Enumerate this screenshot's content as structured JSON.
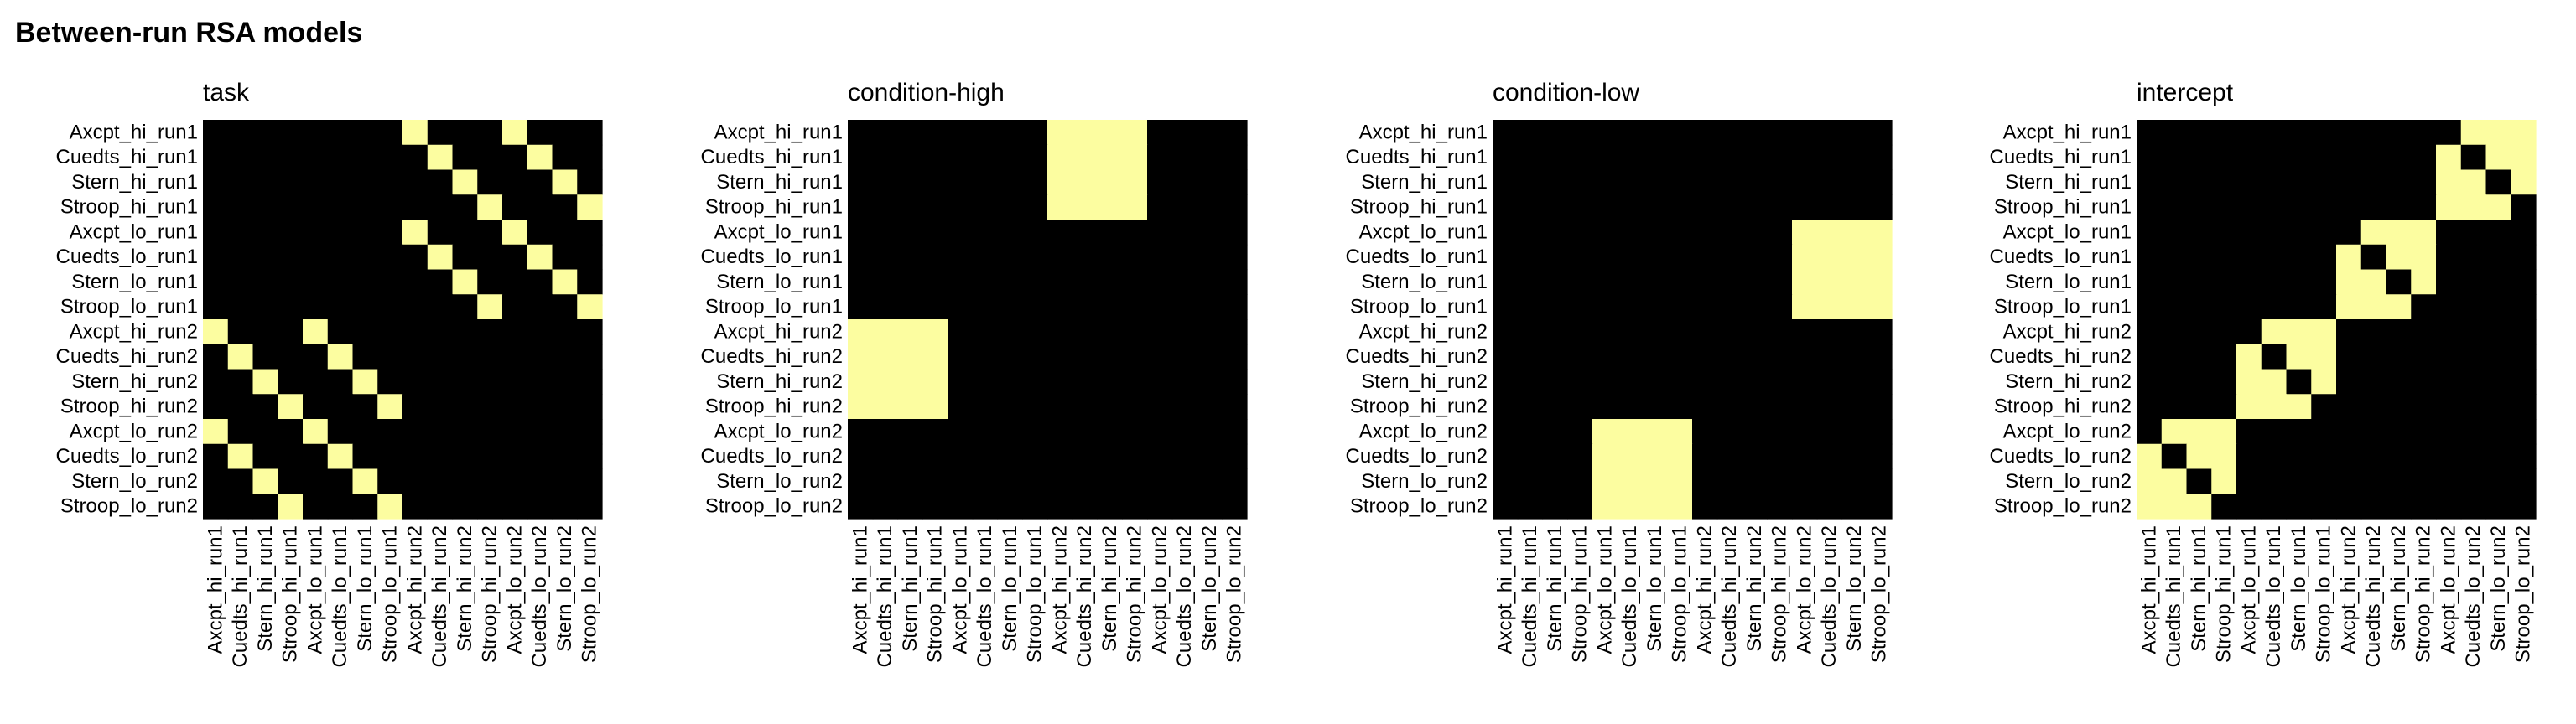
{
  "figure": {
    "title": "Between-run RSA models"
  },
  "chart_data": [
    {
      "type": "heatmap",
      "title": "task",
      "labels": [
        "Axcpt_hi_run1",
        "Cuedts_hi_run1",
        "Stern_hi_run1",
        "Stroop_hi_run1",
        "Axcpt_lo_run1",
        "Cuedts_lo_run1",
        "Stern_lo_run1",
        "Stroop_lo_run1",
        "Axcpt_hi_run2",
        "Cuedts_hi_run2",
        "Stern_hi_run2",
        "Stroop_hi_run2",
        "Axcpt_lo_run2",
        "Cuedts_lo_run2",
        "Stern_lo_run2",
        "Stroop_lo_run2"
      ],
      "matrix": [
        [
          0,
          0,
          0,
          0,
          0,
          0,
          0,
          0,
          1,
          0,
          0,
          0,
          1,
          0,
          0,
          0
        ],
        [
          0,
          0,
          0,
          0,
          0,
          0,
          0,
          0,
          0,
          1,
          0,
          0,
          0,
          1,
          0,
          0
        ],
        [
          0,
          0,
          0,
          0,
          0,
          0,
          0,
          0,
          0,
          0,
          1,
          0,
          0,
          0,
          1,
          0
        ],
        [
          0,
          0,
          0,
          0,
          0,
          0,
          0,
          0,
          0,
          0,
          0,
          1,
          0,
          0,
          0,
          1
        ],
        [
          0,
          0,
          0,
          0,
          0,
          0,
          0,
          0,
          1,
          0,
          0,
          0,
          1,
          0,
          0,
          0
        ],
        [
          0,
          0,
          0,
          0,
          0,
          0,
          0,
          0,
          0,
          1,
          0,
          0,
          0,
          1,
          0,
          0
        ],
        [
          0,
          0,
          0,
          0,
          0,
          0,
          0,
          0,
          0,
          0,
          1,
          0,
          0,
          0,
          1,
          0
        ],
        [
          0,
          0,
          0,
          0,
          0,
          0,
          0,
          0,
          0,
          0,
          0,
          1,
          0,
          0,
          0,
          1
        ],
        [
          1,
          0,
          0,
          0,
          1,
          0,
          0,
          0,
          0,
          0,
          0,
          0,
          0,
          0,
          0,
          0
        ],
        [
          0,
          1,
          0,
          0,
          0,
          1,
          0,
          0,
          0,
          0,
          0,
          0,
          0,
          0,
          0,
          0
        ],
        [
          0,
          0,
          1,
          0,
          0,
          0,
          1,
          0,
          0,
          0,
          0,
          0,
          0,
          0,
          0,
          0
        ],
        [
          0,
          0,
          0,
          1,
          0,
          0,
          0,
          1,
          0,
          0,
          0,
          0,
          0,
          0,
          0,
          0
        ],
        [
          1,
          0,
          0,
          0,
          1,
          0,
          0,
          0,
          0,
          0,
          0,
          0,
          0,
          0,
          0,
          0
        ],
        [
          0,
          1,
          0,
          0,
          0,
          1,
          0,
          0,
          0,
          0,
          0,
          0,
          0,
          0,
          0,
          0
        ],
        [
          0,
          0,
          1,
          0,
          0,
          0,
          1,
          0,
          0,
          0,
          0,
          0,
          0,
          0,
          0,
          0
        ],
        [
          0,
          0,
          0,
          1,
          0,
          0,
          0,
          1,
          0,
          0,
          0,
          0,
          0,
          0,
          0,
          0
        ]
      ],
      "colors": {
        "0": "#000000",
        "1": "#FCFDA0"
      },
      "legend": "none",
      "grid": false
    },
    {
      "type": "heatmap",
      "title": "condition-high",
      "labels": [
        "Axcpt_hi_run1",
        "Cuedts_hi_run1",
        "Stern_hi_run1",
        "Stroop_hi_run1",
        "Axcpt_lo_run1",
        "Cuedts_lo_run1",
        "Stern_lo_run1",
        "Stroop_lo_run1",
        "Axcpt_hi_run2",
        "Cuedts_hi_run2",
        "Stern_hi_run2",
        "Stroop_hi_run2",
        "Axcpt_lo_run2",
        "Cuedts_lo_run2",
        "Stern_lo_run2",
        "Stroop_lo_run2"
      ],
      "matrix": [
        [
          0,
          0,
          0,
          0,
          0,
          0,
          0,
          0,
          1,
          1,
          1,
          1,
          0,
          0,
          0,
          0
        ],
        [
          0,
          0,
          0,
          0,
          0,
          0,
          0,
          0,
          1,
          1,
          1,
          1,
          0,
          0,
          0,
          0
        ],
        [
          0,
          0,
          0,
          0,
          0,
          0,
          0,
          0,
          1,
          1,
          1,
          1,
          0,
          0,
          0,
          0
        ],
        [
          0,
          0,
          0,
          0,
          0,
          0,
          0,
          0,
          1,
          1,
          1,
          1,
          0,
          0,
          0,
          0
        ],
        [
          0,
          0,
          0,
          0,
          0,
          0,
          0,
          0,
          0,
          0,
          0,
          0,
          0,
          0,
          0,
          0
        ],
        [
          0,
          0,
          0,
          0,
          0,
          0,
          0,
          0,
          0,
          0,
          0,
          0,
          0,
          0,
          0,
          0
        ],
        [
          0,
          0,
          0,
          0,
          0,
          0,
          0,
          0,
          0,
          0,
          0,
          0,
          0,
          0,
          0,
          0
        ],
        [
          0,
          0,
          0,
          0,
          0,
          0,
          0,
          0,
          0,
          0,
          0,
          0,
          0,
          0,
          0,
          0
        ],
        [
          1,
          1,
          1,
          1,
          0,
          0,
          0,
          0,
          0,
          0,
          0,
          0,
          0,
          0,
          0,
          0
        ],
        [
          1,
          1,
          1,
          1,
          0,
          0,
          0,
          0,
          0,
          0,
          0,
          0,
          0,
          0,
          0,
          0
        ],
        [
          1,
          1,
          1,
          1,
          0,
          0,
          0,
          0,
          0,
          0,
          0,
          0,
          0,
          0,
          0,
          0
        ],
        [
          1,
          1,
          1,
          1,
          0,
          0,
          0,
          0,
          0,
          0,
          0,
          0,
          0,
          0,
          0,
          0
        ],
        [
          0,
          0,
          0,
          0,
          0,
          0,
          0,
          0,
          0,
          0,
          0,
          0,
          0,
          0,
          0,
          0
        ],
        [
          0,
          0,
          0,
          0,
          0,
          0,
          0,
          0,
          0,
          0,
          0,
          0,
          0,
          0,
          0,
          0
        ],
        [
          0,
          0,
          0,
          0,
          0,
          0,
          0,
          0,
          0,
          0,
          0,
          0,
          0,
          0,
          0,
          0
        ],
        [
          0,
          0,
          0,
          0,
          0,
          0,
          0,
          0,
          0,
          0,
          0,
          0,
          0,
          0,
          0,
          0
        ]
      ],
      "colors": {
        "0": "#000000",
        "1": "#FCFDA0"
      },
      "legend": "none",
      "grid": false
    },
    {
      "type": "heatmap",
      "title": "condition-low",
      "labels": [
        "Axcpt_hi_run1",
        "Cuedts_hi_run1",
        "Stern_hi_run1",
        "Stroop_hi_run1",
        "Axcpt_lo_run1",
        "Cuedts_lo_run1",
        "Stern_lo_run1",
        "Stroop_lo_run1",
        "Axcpt_hi_run2",
        "Cuedts_hi_run2",
        "Stern_hi_run2",
        "Stroop_hi_run2",
        "Axcpt_lo_run2",
        "Cuedts_lo_run2",
        "Stern_lo_run2",
        "Stroop_lo_run2"
      ],
      "matrix": [
        [
          0,
          0,
          0,
          0,
          0,
          0,
          0,
          0,
          0,
          0,
          0,
          0,
          0,
          0,
          0,
          0
        ],
        [
          0,
          0,
          0,
          0,
          0,
          0,
          0,
          0,
          0,
          0,
          0,
          0,
          0,
          0,
          0,
          0
        ],
        [
          0,
          0,
          0,
          0,
          0,
          0,
          0,
          0,
          0,
          0,
          0,
          0,
          0,
          0,
          0,
          0
        ],
        [
          0,
          0,
          0,
          0,
          0,
          0,
          0,
          0,
          0,
          0,
          0,
          0,
          0,
          0,
          0,
          0
        ],
        [
          0,
          0,
          0,
          0,
          0,
          0,
          0,
          0,
          0,
          0,
          0,
          0,
          1,
          1,
          1,
          1
        ],
        [
          0,
          0,
          0,
          0,
          0,
          0,
          0,
          0,
          0,
          0,
          0,
          0,
          1,
          1,
          1,
          1
        ],
        [
          0,
          0,
          0,
          0,
          0,
          0,
          0,
          0,
          0,
          0,
          0,
          0,
          1,
          1,
          1,
          1
        ],
        [
          0,
          0,
          0,
          0,
          0,
          0,
          0,
          0,
          0,
          0,
          0,
          0,
          1,
          1,
          1,
          1
        ],
        [
          0,
          0,
          0,
          0,
          0,
          0,
          0,
          0,
          0,
          0,
          0,
          0,
          0,
          0,
          0,
          0
        ],
        [
          0,
          0,
          0,
          0,
          0,
          0,
          0,
          0,
          0,
          0,
          0,
          0,
          0,
          0,
          0,
          0
        ],
        [
          0,
          0,
          0,
          0,
          0,
          0,
          0,
          0,
          0,
          0,
          0,
          0,
          0,
          0,
          0,
          0
        ],
        [
          0,
          0,
          0,
          0,
          0,
          0,
          0,
          0,
          0,
          0,
          0,
          0,
          0,
          0,
          0,
          0
        ],
        [
          0,
          0,
          0,
          0,
          1,
          1,
          1,
          1,
          0,
          0,
          0,
          0,
          0,
          0,
          0,
          0
        ],
        [
          0,
          0,
          0,
          0,
          1,
          1,
          1,
          1,
          0,
          0,
          0,
          0,
          0,
          0,
          0,
          0
        ],
        [
          0,
          0,
          0,
          0,
          1,
          1,
          1,
          1,
          0,
          0,
          0,
          0,
          0,
          0,
          0,
          0
        ],
        [
          0,
          0,
          0,
          0,
          1,
          1,
          1,
          1,
          0,
          0,
          0,
          0,
          0,
          0,
          0,
          0
        ]
      ],
      "colors": {
        "0": "#000000",
        "1": "#FCFDA0"
      },
      "legend": "none",
      "grid": false
    },
    {
      "type": "heatmap",
      "title": "intercept",
      "labels": [
        "Axcpt_hi_run1",
        "Cuedts_hi_run1",
        "Stern_hi_run1",
        "Stroop_hi_run1",
        "Axcpt_lo_run1",
        "Cuedts_lo_run1",
        "Stern_lo_run1",
        "Stroop_lo_run1",
        "Axcpt_hi_run2",
        "Cuedts_hi_run2",
        "Stern_hi_run2",
        "Stroop_hi_run2",
        "Axcpt_lo_run2",
        "Cuedts_lo_run2",
        "Stern_lo_run2",
        "Stroop_lo_run2"
      ],
      "matrix": [
        [
          0,
          0,
          0,
          0,
          0,
          0,
          0,
          0,
          0,
          0,
          0,
          0,
          0,
          1,
          1,
          1
        ],
        [
          0,
          0,
          0,
          0,
          0,
          0,
          0,
          0,
          0,
          0,
          0,
          0,
          1,
          0,
          1,
          1
        ],
        [
          0,
          0,
          0,
          0,
          0,
          0,
          0,
          0,
          0,
          0,
          0,
          0,
          1,
          1,
          0,
          1
        ],
        [
          0,
          0,
          0,
          0,
          0,
          0,
          0,
          0,
          0,
          0,
          0,
          0,
          1,
          1,
          1,
          0
        ],
        [
          0,
          0,
          0,
          0,
          0,
          0,
          0,
          0,
          0,
          1,
          1,
          1,
          0,
          0,
          0,
          0
        ],
        [
          0,
          0,
          0,
          0,
          0,
          0,
          0,
          0,
          1,
          0,
          1,
          1,
          0,
          0,
          0,
          0
        ],
        [
          0,
          0,
          0,
          0,
          0,
          0,
          0,
          0,
          1,
          1,
          0,
          1,
          0,
          0,
          0,
          0
        ],
        [
          0,
          0,
          0,
          0,
          0,
          0,
          0,
          0,
          1,
          1,
          1,
          0,
          0,
          0,
          0,
          0
        ],
        [
          0,
          0,
          0,
          0,
          0,
          1,
          1,
          1,
          0,
          0,
          0,
          0,
          0,
          0,
          0,
          0
        ],
        [
          0,
          0,
          0,
          0,
          1,
          0,
          1,
          1,
          0,
          0,
          0,
          0,
          0,
          0,
          0,
          0
        ],
        [
          0,
          0,
          0,
          0,
          1,
          1,
          0,
          1,
          0,
          0,
          0,
          0,
          0,
          0,
          0,
          0
        ],
        [
          0,
          0,
          0,
          0,
          1,
          1,
          1,
          0,
          0,
          0,
          0,
          0,
          0,
          0,
          0,
          0
        ],
        [
          0,
          1,
          1,
          1,
          0,
          0,
          0,
          0,
          0,
          0,
          0,
          0,
          0,
          0,
          0,
          0
        ],
        [
          1,
          0,
          1,
          1,
          0,
          0,
          0,
          0,
          0,
          0,
          0,
          0,
          0,
          0,
          0,
          0
        ],
        [
          1,
          1,
          0,
          1,
          0,
          0,
          0,
          0,
          0,
          0,
          0,
          0,
          0,
          0,
          0,
          0
        ],
        [
          1,
          1,
          1,
          0,
          0,
          0,
          0,
          0,
          0,
          0,
          0,
          0,
          0,
          0,
          0,
          0
        ]
      ],
      "colors": {
        "0": "#000000",
        "1": "#FCFDA0"
      },
      "legend": "none",
      "grid": false
    }
  ]
}
